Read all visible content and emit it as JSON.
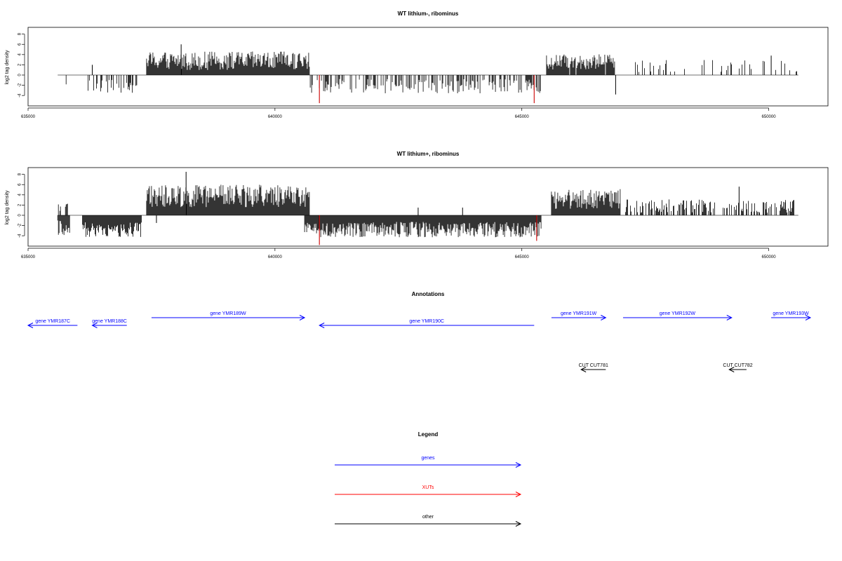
{
  "colors": {
    "gene": "#0000ff",
    "xut": "#ff0000",
    "other": "#000000",
    "baseline": "#707070",
    "red_bars": "#cc0000"
  },
  "chart_data": [
    {
      "type": "bar",
      "title": "WT lithium-, ribominus",
      "ylabel": "log2 tag density",
      "xlim": [
        635000,
        651200
      ],
      "ylim": [
        -6,
        9
      ],
      "xticks": [
        635000,
        640000,
        645000,
        650000
      ],
      "xtick_labels": [
        "635000",
        "640000",
        "645000",
        "650000"
      ],
      "yticks": [
        -4,
        -2,
        0,
        2,
        4,
        6,
        8
      ],
      "ytick_labels": [
        "-4",
        "-2",
        "0",
        "2",
        "4",
        "6",
        "8"
      ],
      "baseline_range": [
        635600,
        650600
      ],
      "regions": [
        {
          "start": 635600,
          "end": 635800,
          "sign": -1,
          "mean": 2.0,
          "amp": 1.2,
          "density": 0.02
        },
        {
          "start": 636200,
          "end": 637200,
          "sign": -1,
          "mean": 2.2,
          "amp": 1.3,
          "density": 0.06
        },
        {
          "start": 637400,
          "end": 640700,
          "sign": 1,
          "mean": 2.8,
          "amp": 1.8,
          "density": 0.18
        },
        {
          "start": 640700,
          "end": 645400,
          "sign": -1,
          "mean": 2.2,
          "amp": 1.4,
          "density": 0.07
        },
        {
          "start": 645500,
          "end": 646900,
          "sign": 1,
          "mean": 2.6,
          "amp": 1.5,
          "density": 0.15
        },
        {
          "start": 647300,
          "end": 650600,
          "sign": 1,
          "mean": 1.8,
          "amp": 1.2,
          "density": 0.025
        }
      ],
      "spikes": [
        {
          "x": 636300,
          "y": 2.0
        },
        {
          "x": 637200,
          "y": -2.0
        },
        {
          "x": 638100,
          "y": 6.0
        },
        {
          "x": 646900,
          "y": -3.8
        },
        {
          "x": 650050,
          "y": 3.8
        }
      ],
      "red_spikes": [
        {
          "x": 640900,
          "y": -5.5
        },
        {
          "x": 645250,
          "y": -5.5
        }
      ]
    },
    {
      "type": "bar",
      "title": "WT lithium+, ribominus",
      "ylabel": "log2 tag density",
      "xlim": [
        635000,
        651200
      ],
      "ylim": [
        -6,
        9
      ],
      "xticks": [
        635000,
        640000,
        645000,
        650000
      ],
      "xtick_labels": [
        "635000",
        "640000",
        "645000",
        "650000"
      ],
      "yticks": [
        -4,
        -2,
        0,
        2,
        4,
        6,
        8
      ],
      "ytick_labels": [
        "-4",
        "-2",
        "0",
        "2",
        "4",
        "6",
        "8"
      ],
      "baseline_range": [
        635600,
        650600
      ],
      "regions": [
        {
          "start": 635600,
          "end": 635850,
          "sign": -1,
          "mean": 2.5,
          "amp": 1.5,
          "density": 0.2
        },
        {
          "start": 635600,
          "end": 635800,
          "sign": 1,
          "mean": 1.5,
          "amp": 1.0,
          "density": 0.08
        },
        {
          "start": 636100,
          "end": 637300,
          "sign": -1,
          "mean": 2.8,
          "amp": 1.5,
          "density": 0.2
        },
        {
          "start": 637400,
          "end": 640700,
          "sign": 1,
          "mean": 3.8,
          "amp": 2.2,
          "density": 0.6
        },
        {
          "start": 640600,
          "end": 645400,
          "sign": -1,
          "mean": 2.8,
          "amp": 1.5,
          "density": 0.3
        },
        {
          "start": 645600,
          "end": 647000,
          "sign": 1,
          "mean": 3.2,
          "amp": 2.0,
          "density": 0.5
        },
        {
          "start": 647100,
          "end": 650600,
          "sign": 1,
          "mean": 1.8,
          "amp": 1.3,
          "density": 0.08
        }
      ],
      "spikes": [
        {
          "x": 638200,
          "y": 8.5
        },
        {
          "x": 637600,
          "y": -1.5
        },
        {
          "x": 643800,
          "y": 1.5
        },
        {
          "x": 642900,
          "y": 1.5
        },
        {
          "x": 649400,
          "y": 5.6
        }
      ],
      "red_spikes": [
        {
          "x": 640900,
          "y": -5.8
        },
        {
          "x": 645300,
          "y": -5.0
        }
      ]
    }
  ],
  "annotations": {
    "title": "Annotations",
    "items": [
      {
        "label": "gene YMR187C",
        "start": 635000,
        "end": 636000,
        "dir": "left",
        "row": 1,
        "type": "gene"
      },
      {
        "label": "gene YMR188C",
        "start": 636300,
        "end": 637000,
        "dir": "left",
        "row": 1,
        "type": "gene"
      },
      {
        "label": "gene YMR189W",
        "start": 637500,
        "end": 640600,
        "dir": "right",
        "row": 0,
        "type": "gene"
      },
      {
        "label": "gene YMR190C",
        "start": 640900,
        "end": 645250,
        "dir": "left",
        "row": 1,
        "type": "gene"
      },
      {
        "label": "gene YMR191W",
        "start": 645600,
        "end": 646700,
        "dir": "right",
        "row": 0,
        "type": "gene"
      },
      {
        "label": "gene YMR192W",
        "start": 647050,
        "end": 649250,
        "dir": "right",
        "row": 0,
        "type": "gene"
      },
      {
        "label": "gene YMR193W",
        "start": 650050,
        "end": 650850,
        "dir": "right",
        "row": 0,
        "type": "gene"
      },
      {
        "label": "CUT CUT781",
        "start": 646200,
        "end": 646700,
        "dir": "left",
        "row": 2,
        "type": "other"
      },
      {
        "label": "CUT CUT782",
        "start": 649200,
        "end": 649550,
        "dir": "left",
        "row": 2,
        "type": "other"
      }
    ]
  },
  "legend": {
    "title": "Legend",
    "entries": [
      {
        "label": "genes",
        "type": "gene"
      },
      {
        "label": "XUTs",
        "type": "xut"
      },
      {
        "label": "other",
        "type": "other"
      }
    ]
  }
}
